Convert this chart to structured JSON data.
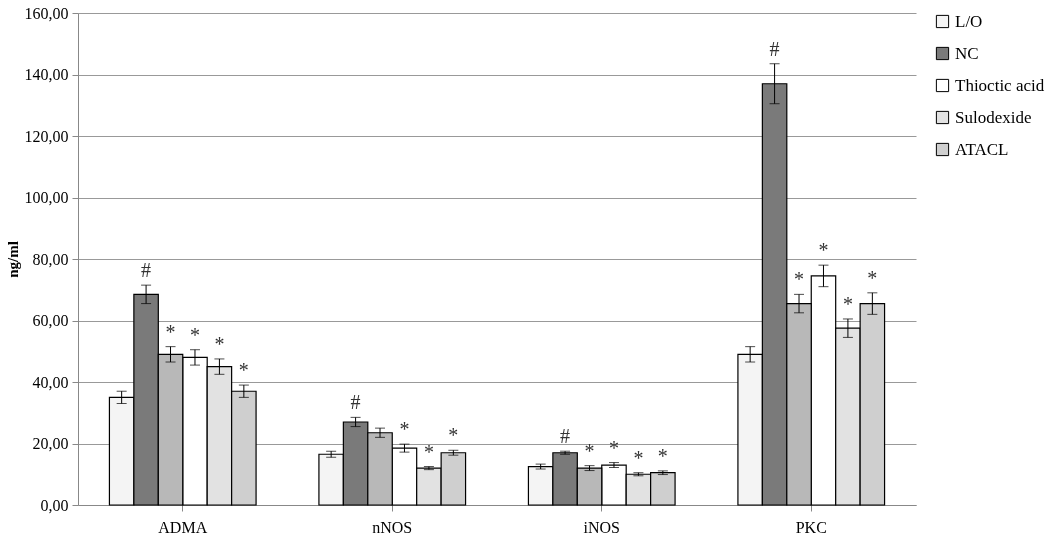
{
  "chart_data": {
    "type": "bar",
    "ylabel": "ng/ml",
    "categories": [
      "ADMA",
      "nNOS",
      "iNOS",
      "PKC"
    ],
    "series": [
      {
        "name": "L/O",
        "color": "#f4f4f4",
        "values": [
          35,
          16.5,
          12.5,
          49
        ],
        "errors": [
          2,
          1,
          0.8,
          2.5
        ]
      },
      {
        "name": "NC",
        "color": "#7a7a7a",
        "values": [
          68.5,
          27,
          17,
          137
        ],
        "errors": [
          3,
          1.5,
          0.5,
          6.5
        ]
      },
      {
        "color": "#b8b8b8",
        "values": [
          49,
          23.5,
          12,
          65.5
        ],
        "errors": [
          2.5,
          1.5,
          0.8,
          3
        ]
      },
      {
        "name": "Thioctic acid",
        "color": "#ffffff",
        "values": [
          48,
          18.5,
          13,
          74.5
        ],
        "errors": [
          2.5,
          1.3,
          0.8,
          3.5
        ]
      },
      {
        "name": "Sulodexide",
        "color": "#e2e2e2",
        "values": [
          45,
          12,
          10,
          57.5
        ],
        "errors": [
          2.5,
          0.5,
          0.5,
          3
        ]
      },
      {
        "name": "ATACL",
        "color": "#cfcfcf",
        "values": [
          37,
          17,
          10.5,
          65.5
        ],
        "errors": [
          2,
          0.8,
          0.6,
          3.5
        ]
      }
    ],
    "ylim": [
      0,
      160
    ],
    "yticks": [
      {
        "value": 0,
        "label": "0,00"
      },
      {
        "value": 20,
        "label": "20,00"
      },
      {
        "value": 40,
        "label": "40,00"
      },
      {
        "value": 60,
        "label": "60,00"
      },
      {
        "value": 80,
        "label": "80,00"
      },
      {
        "value": 100,
        "label": "100,00"
      },
      {
        "value": 120,
        "label": "120,00"
      },
      {
        "value": 140,
        "label": "140,00"
      },
      {
        "value": 160,
        "label": "160,00"
      }
    ],
    "grid": "y",
    "legend": "right",
    "annotations": [
      "#",
      {
        "text": "*",
        "x": "ADMA",
        "y": 49
      },
      {
        "text": "*",
        "x": "ADMA",
        "y": 48
      },
      {
        "text": "*",
        "x": "ADMA",
        "y": 45
      },
      {
        "text": "*",
        "x": "ADMA",
        "y": 37
      },
      "#",
      {
        "text": "*",
        "x": "nNOS",
        "y": 18.5
      },
      {
        "text": "*",
        "x": "nNOS",
        "y": 12
      },
      {
        "text": "*",
        "x": "nNOS",
        "y": 17
      },
      "#",
      {
        "text": "*",
        "x": "iNOS",
        "y": 12
      },
      {
        "text": "*",
        "x": "iNOS",
        "y": 13
      },
      {
        "text": "*",
        "x": "iNOS",
        "y": 10
      },
      {
        "text": "*",
        "x": "iNOS",
        "y": 10.5
      },
      "#",
      {
        "text": "*",
        "x": "PKC",
        "y": 65.5
      },
      {
        "text": "*",
        "x": "PKC",
        "y": 74.5
      },
      {
        "text": "*",
        "x": "PKC",
        "y": 57.5
      },
      {
        "text": "*",
        "x": "PKC",
        "y": 65.5
      }
    ]
  }
}
